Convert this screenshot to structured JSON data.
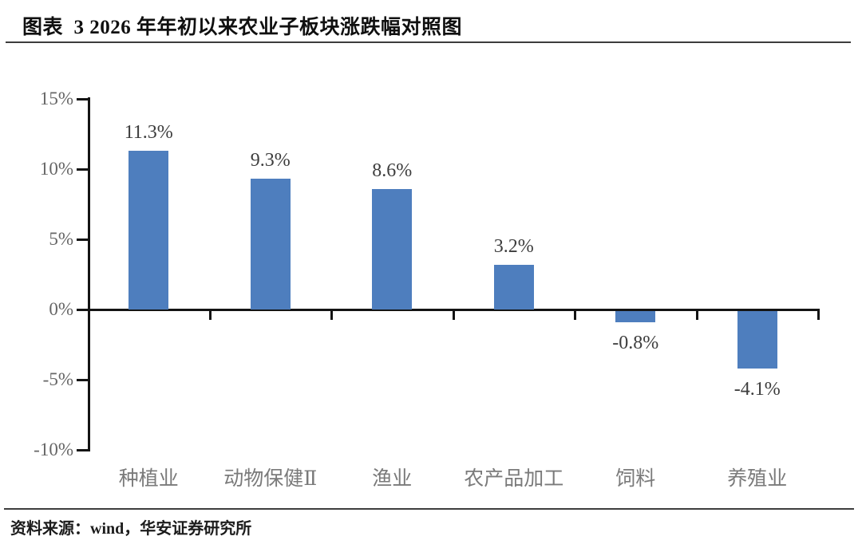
{
  "header": {
    "title": "图表  3 2026 年年初以来农业子板块涨跌幅对照图"
  },
  "footer": {
    "source": "资料来源：wind，华安证券研究所"
  },
  "colors": {
    "bar": "#4e7ebe",
    "axis": "#141414",
    "data_label": "#3d3d3d",
    "y_tick_label": "#666666",
    "category_label": "#7a7a7a",
    "rule": "#3d3d3d"
  },
  "chart_data": {
    "type": "bar",
    "title": "2026 年年初以来农业子板块涨跌幅对照图",
    "xlabel": "",
    "ylabel": "",
    "categories": [
      "种植业",
      "动物保健Ⅱ",
      "渔业",
      "农产品加工",
      "饲料",
      "养殖业"
    ],
    "values": [
      11.3,
      9.3,
      8.6,
      3.2,
      -0.8,
      -4.1
    ],
    "data_labels": [
      "11.3%",
      "9.3%",
      "8.6%",
      "3.2%",
      "-0.8%",
      "-4.1%"
    ],
    "y_ticks": [
      15,
      10,
      5,
      0,
      -5,
      -10
    ],
    "y_tick_labels": [
      "15%",
      "10%",
      "5%",
      "0%",
      "-5%",
      "-10%"
    ],
    "ylim": [
      -10,
      15
    ],
    "grid": false,
    "legend": false
  }
}
